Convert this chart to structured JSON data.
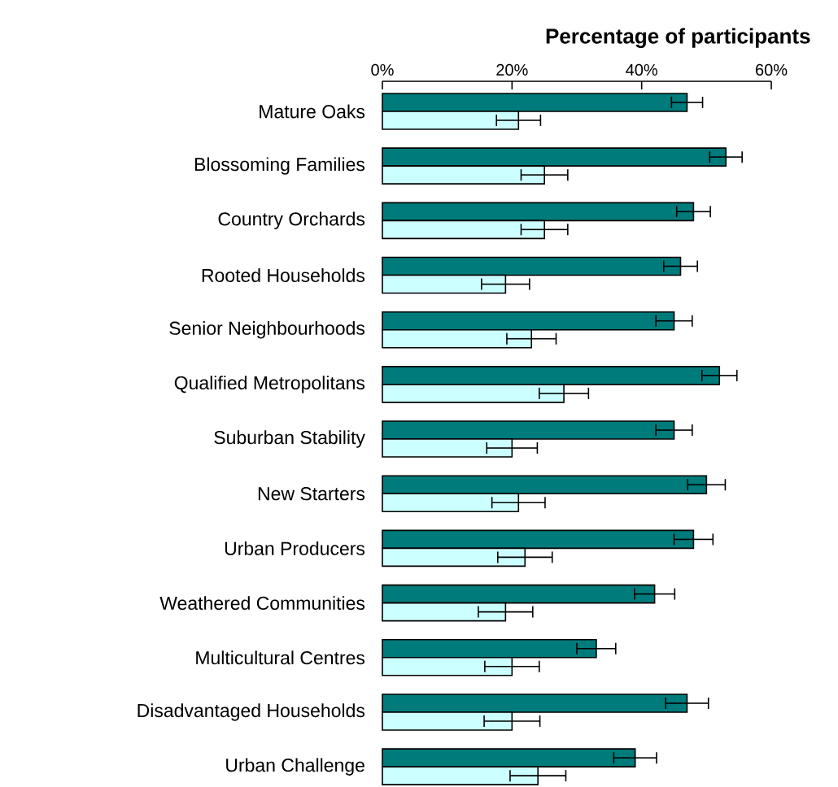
{
  "chart_data": {
    "type": "bar",
    "orientation": "horizontal",
    "xlabel": "Percentage of participants",
    "categories": [
      "Mature Oaks",
      "Blossoming Families",
      "Country Orchards",
      "Rooted Households",
      "Senior Neighbourhoods",
      "Qualified Metropolitans",
      "Suburban Stability",
      "New Starters",
      "Urban Producers",
      "Weathered Communities",
      "Multicultural Centres",
      "Disadvantaged Households",
      "Urban Challenge"
    ],
    "series": [
      {
        "color": "#007b7b",
        "values": [
          47,
          53,
          48,
          46,
          45,
          52,
          45,
          50,
          48,
          42,
          33,
          47,
          39
        ],
        "errors": [
          2.4,
          2.5,
          2.6,
          2.6,
          2.8,
          2.7,
          2.8,
          2.9,
          3.0,
          3.1,
          3.0,
          3.3,
          3.3
        ]
      },
      {
        "color": "#ccffff",
        "values": [
          21,
          25,
          25,
          19,
          23,
          28,
          20,
          21,
          22,
          19,
          20,
          20,
          24
        ],
        "errors": [
          3.4,
          3.6,
          3.6,
          3.7,
          3.8,
          3.8,
          3.9,
          4.1,
          4.2,
          4.2,
          4.2,
          4.3,
          4.3
        ]
      }
    ],
    "xlim": [
      0,
      60
    ],
    "xticks": [
      {
        "value": 0,
        "label": "0%"
      },
      {
        "value": 20,
        "label": "20%"
      },
      {
        "value": 40,
        "label": "40%"
      },
      {
        "value": 60,
        "label": "60%"
      }
    ],
    "grid": false
  }
}
